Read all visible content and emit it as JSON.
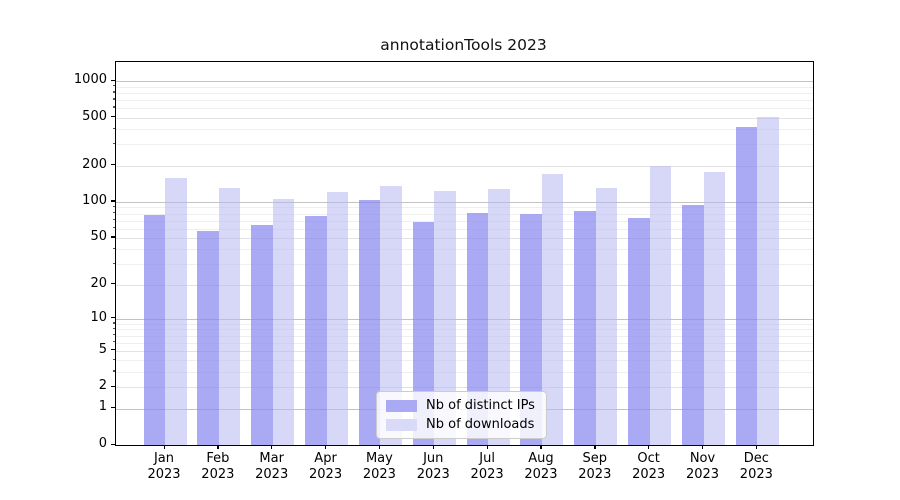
{
  "title": "annotationTools 2023",
  "colors": {
    "ips_bar": "rgba(137,137,240,0.72)",
    "downloads_bar": "rgba(183,183,243,0.55)",
    "ips_legend": "#a9a9f4",
    "downloads_legend": "#d9d9f8",
    "grid_decade": "#c3c3c3",
    "grid_labeled": "#e2e2e2",
    "grid_minor": "#efefef"
  },
  "chart_data": {
    "type": "bar",
    "title": "annotationTools 2023",
    "scale": "log1p",
    "grid": true,
    "legend_position": "lower center-left inside plot",
    "categories": [
      "Jan",
      "Feb",
      "Mar",
      "Apr",
      "May",
      "Jun",
      "Jul",
      "Aug",
      "Sep",
      "Oct",
      "Nov",
      "Dec"
    ],
    "year": "2023",
    "series": [
      {
        "name": "Nb of distinct IPs",
        "values": [
          78,
          57,
          64,
          77,
          103,
          68,
          81,
          79,
          84,
          73,
          95,
          418
        ]
      },
      {
        "name": "Nb of downloads",
        "values": [
          157,
          131,
          105,
          122,
          137,
          123,
          127,
          171,
          130,
          200,
          177,
          510
        ]
      }
    ],
    "yticks": [
      1000,
      500,
      200,
      100,
      50,
      20,
      10,
      5,
      2,
      1,
      0
    ],
    "grid_decades": [
      1,
      10,
      100,
      1000
    ],
    "grid_labeled": [
      2,
      5,
      20,
      50,
      200,
      500
    ],
    "grid_minor": [
      3,
      4,
      6,
      7,
      8,
      9,
      30,
      40,
      60,
      70,
      80,
      90,
      300,
      400,
      600,
      700,
      800,
      900
    ],
    "ylim": [
      0,
      1437
    ],
    "xlabel": "",
    "ylabel": ""
  }
}
